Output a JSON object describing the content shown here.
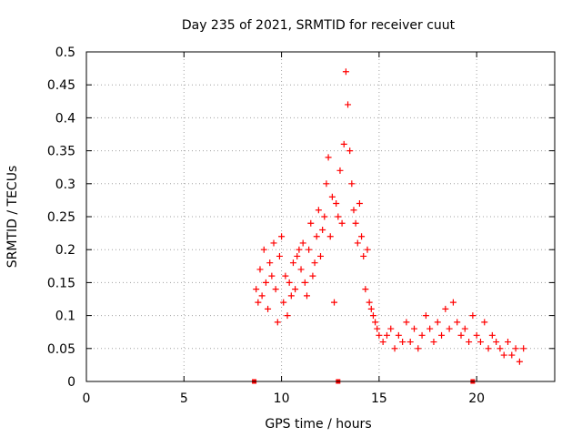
{
  "chart_data": {
    "type": "scatter",
    "title": "Day 235 of 2021, SRMTID for receiver cuut",
    "xlabel": "GPS time / hours",
    "ylabel": "SRMTID / TECUs",
    "xlim": [
      0,
      24
    ],
    "ylim": [
      0,
      0.5
    ],
    "xticks": [
      0,
      5,
      10,
      15,
      20
    ],
    "xtick_labels": [
      "0",
      "5",
      "10",
      "15",
      "20"
    ],
    "yticks": [
      0,
      0.05,
      0.1,
      0.15,
      0.2,
      0.25,
      0.3,
      0.35,
      0.4,
      0.45,
      0.5
    ],
    "ytick_labels": [
      "0",
      "0.05",
      "0.1",
      "0.15",
      "0.2",
      "0.25",
      "0.3",
      "0.35",
      "0.4",
      "0.45",
      "0.5"
    ],
    "grid": true,
    "legend": "none",
    "marker": "plus",
    "color": "#ff0000",
    "series": [
      {
        "marker": "plus",
        "x": [
          8.7,
          8.8,
          8.9,
          9.0,
          9.1,
          9.2,
          9.3,
          9.4,
          9.5,
          9.6,
          9.7,
          9.8,
          9.9,
          10.0,
          10.1,
          10.2,
          10.3,
          10.4,
          10.5,
          10.6,
          10.7,
          10.8,
          10.9,
          11.0,
          11.1,
          11.2,
          11.3,
          11.4,
          11.5,
          11.6,
          11.7,
          11.8,
          11.9,
          12.0,
          12.1,
          12.2,
          12.3,
          12.4,
          12.5,
          12.6,
          12.7,
          12.8,
          12.9,
          13.0,
          13.1,
          13.2,
          13.3,
          13.4,
          13.5,
          13.6,
          13.7,
          13.8,
          13.9,
          14.0,
          14.1,
          14.2,
          14.3,
          14.4,
          14.5,
          14.6,
          14.7,
          14.8,
          14.9,
          15.0,
          15.2,
          15.4,
          15.6,
          15.8,
          16.0,
          16.2,
          16.4,
          16.6,
          16.8,
          17.0,
          17.2,
          17.4,
          17.6,
          17.8,
          18.0,
          18.2,
          18.4,
          18.6,
          18.8,
          19.0,
          19.2,
          19.4,
          19.6,
          19.8,
          20.0,
          20.2,
          20.4,
          20.6,
          20.8,
          21.0,
          21.2,
          21.4,
          21.6,
          21.8,
          22.0,
          22.2,
          22.4
        ],
        "y": [
          0.14,
          0.12,
          0.17,
          0.13,
          0.2,
          0.15,
          0.11,
          0.18,
          0.16,
          0.21,
          0.14,
          0.09,
          0.19,
          0.22,
          0.12,
          0.16,
          0.1,
          0.15,
          0.13,
          0.18,
          0.14,
          0.19,
          0.2,
          0.17,
          0.21,
          0.15,
          0.13,
          0.2,
          0.24,
          0.16,
          0.18,
          0.22,
          0.26,
          0.19,
          0.23,
          0.25,
          0.3,
          0.34,
          0.22,
          0.28,
          0.12,
          0.27,
          0.25,
          0.32,
          0.24,
          0.36,
          0.47,
          0.42,
          0.35,
          0.3,
          0.26,
          0.24,
          0.21,
          0.27,
          0.22,
          0.19,
          0.14,
          0.2,
          0.12,
          0.11,
          0.1,
          0.09,
          0.08,
          0.07,
          0.06,
          0.07,
          0.08,
          0.05,
          0.07,
          0.06,
          0.09,
          0.06,
          0.08,
          0.05,
          0.07,
          0.1,
          0.08,
          0.06,
          0.09,
          0.07,
          0.11,
          0.08,
          0.12,
          0.09,
          0.07,
          0.08,
          0.06,
          0.1,
          0.07,
          0.06,
          0.09,
          0.05,
          0.07,
          0.06,
          0.05,
          0.04,
          0.06,
          0.04,
          0.05,
          0.03,
          0.05
        ]
      },
      {
        "marker": "square",
        "x": [
          8.6,
          12.9,
          19.8
        ],
        "y": [
          0,
          0,
          0
        ]
      }
    ]
  }
}
